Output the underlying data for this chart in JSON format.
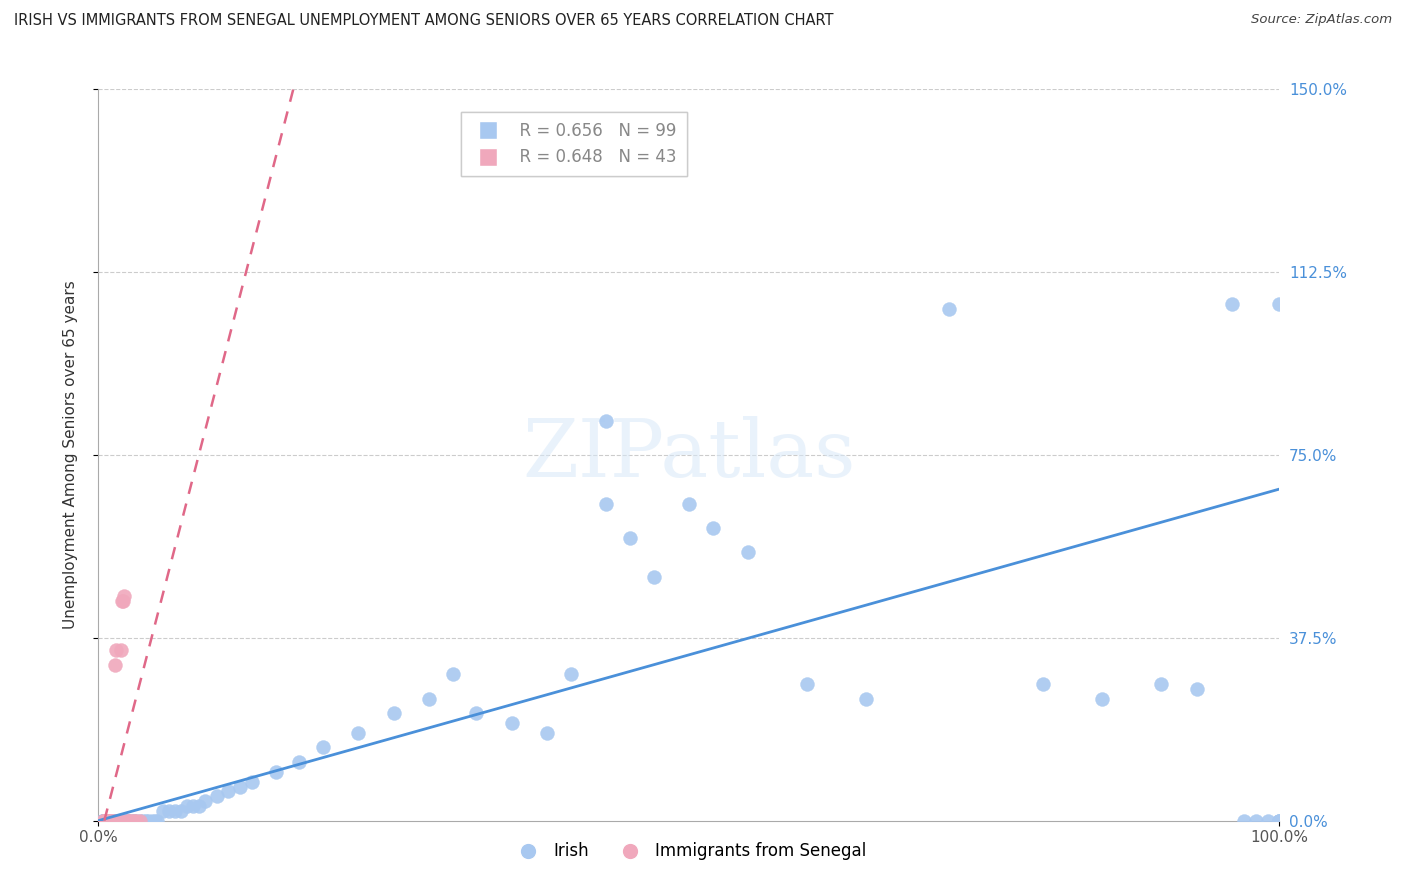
{
  "title": "IRISH VS IMMIGRANTS FROM SENEGAL UNEMPLOYMENT AMONG SENIORS OVER 65 YEARS CORRELATION CHART",
  "source": "Source: ZipAtlas.com",
  "ylabel": "Unemployment Among Seniors over 65 years",
  "xlim": [
    0.0,
    1.0
  ],
  "ylim": [
    0.0,
    1.5
  ],
  "xticks": [
    0.0,
    1.0
  ],
  "xtick_labels": [
    "0.0%",
    "100.0%"
  ],
  "yticks": [
    0.0,
    0.375,
    0.75,
    1.125,
    1.5
  ],
  "ytick_labels": [
    "0.0%",
    "37.5%",
    "75.0%",
    "112.5%",
    "150.0%"
  ],
  "grid_yticks": [
    0.375,
    0.75,
    1.125,
    1.5
  ],
  "irish_R": 0.656,
  "irish_N": 99,
  "senegal_R": 0.648,
  "senegal_N": 43,
  "irish_color": "#a8c8f0",
  "senegal_color": "#f0a8bc",
  "irish_line_color": "#4a90d9",
  "senegal_line_color": "#e06888",
  "irish_line_slope": 0.68,
  "irish_line_intercept": 0.0,
  "senegal_line_x": [
    0.005,
    0.165
  ],
  "senegal_line_y": [
    0.0,
    1.5
  ],
  "watermark_text": "ZIPatlas",
  "irish_x": [
    0.003,
    0.004,
    0.004,
    0.005,
    0.005,
    0.005,
    0.005,
    0.006,
    0.006,
    0.006,
    0.007,
    0.007,
    0.007,
    0.007,
    0.008,
    0.008,
    0.008,
    0.009,
    0.009,
    0.01,
    0.01,
    0.01,
    0.01,
    0.01,
    0.01,
    0.01,
    0.01,
    0.012,
    0.012,
    0.013,
    0.014,
    0.015,
    0.015,
    0.016,
    0.017,
    0.018,
    0.019,
    0.02,
    0.02,
    0.022,
    0.023,
    0.024,
    0.025,
    0.027,
    0.03,
    0.03,
    0.032,
    0.035,
    0.038,
    0.04,
    0.042,
    0.045,
    0.048,
    0.05,
    0.055,
    0.06,
    0.065,
    0.07,
    0.075,
    0.08,
    0.085,
    0.09,
    0.1,
    0.11,
    0.12,
    0.13,
    0.15,
    0.17,
    0.19,
    0.22,
    0.25,
    0.28,
    0.3,
    0.32,
    0.35,
    0.38,
    0.4,
    0.43,
    0.45,
    0.47,
    0.43,
    0.5,
    0.52,
    0.55,
    0.6,
    0.65,
    0.72,
    0.8,
    0.85,
    0.9,
    0.93,
    0.96,
    0.97,
    0.98,
    0.99,
    1.0,
    1.0,
    1.0,
    1.0
  ],
  "irish_y": [
    0.0,
    0.0,
    0.0,
    0.0,
    0.0,
    0.0,
    0.0,
    0.0,
    0.0,
    0.0,
    0.0,
    0.0,
    0.0,
    0.0,
    0.0,
    0.0,
    0.0,
    0.0,
    0.0,
    0.0,
    0.0,
    0.0,
    0.0,
    0.0,
    0.0,
    0.0,
    0.0,
    0.0,
    0.0,
    0.0,
    0.0,
    0.0,
    0.0,
    0.0,
    0.0,
    0.0,
    0.0,
    0.0,
    0.0,
    0.0,
    0.0,
    0.0,
    0.0,
    0.0,
    0.0,
    0.0,
    0.0,
    0.0,
    0.0,
    0.0,
    0.0,
    0.0,
    0.0,
    0.0,
    0.02,
    0.02,
    0.02,
    0.02,
    0.03,
    0.03,
    0.03,
    0.04,
    0.05,
    0.06,
    0.07,
    0.08,
    0.1,
    0.12,
    0.15,
    0.18,
    0.22,
    0.25,
    0.3,
    0.22,
    0.2,
    0.18,
    0.3,
    0.82,
    0.58,
    0.5,
    0.65,
    0.65,
    0.6,
    0.55,
    0.28,
    0.25,
    1.05,
    0.28,
    0.25,
    0.28,
    0.27,
    1.06,
    0.0,
    0.0,
    0.0,
    1.06,
    0.0,
    0.0,
    0.0
  ],
  "senegal_x": [
    0.004,
    0.005,
    0.005,
    0.005,
    0.006,
    0.006,
    0.006,
    0.006,
    0.007,
    0.007,
    0.007,
    0.007,
    0.008,
    0.008,
    0.008,
    0.009,
    0.009,
    0.009,
    0.01,
    0.01,
    0.01,
    0.01,
    0.01,
    0.01,
    0.01,
    0.01,
    0.012,
    0.013,
    0.014,
    0.015,
    0.016,
    0.017,
    0.018,
    0.019,
    0.02,
    0.021,
    0.022,
    0.024,
    0.026,
    0.028,
    0.03,
    0.032,
    0.035
  ],
  "senegal_y": [
    0.0,
    0.0,
    0.0,
    0.0,
    0.0,
    0.0,
    0.0,
    0.0,
    0.0,
    0.0,
    0.0,
    0.0,
    0.0,
    0.0,
    0.0,
    0.0,
    0.0,
    0.0,
    0.0,
    0.0,
    0.0,
    0.0,
    0.0,
    0.0,
    0.0,
    0.0,
    0.0,
    0.0,
    0.32,
    0.35,
    0.0,
    0.0,
    0.0,
    0.35,
    0.45,
    0.45,
    0.46,
    0.0,
    0.0,
    0.0,
    0.0,
    0.0,
    0.0
  ]
}
